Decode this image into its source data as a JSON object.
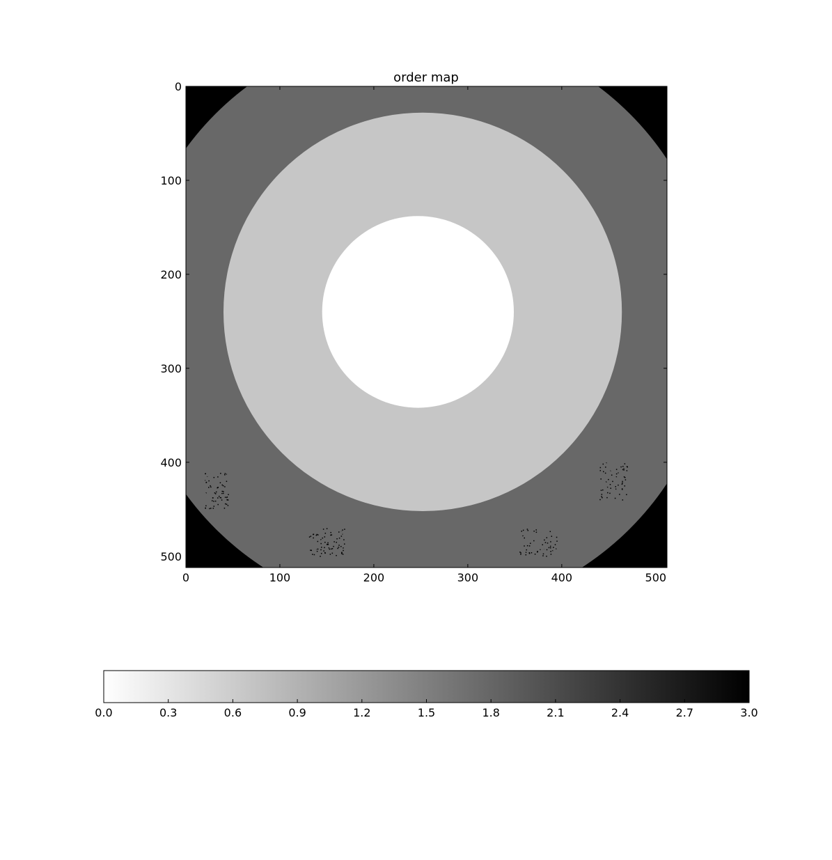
{
  "chart_data": {
    "type": "heatmap",
    "title": "order map",
    "xlabel": "",
    "ylabel": "",
    "xlim": [
      0,
      512
    ],
    "ylim": [
      512,
      0
    ],
    "x_ticks": [
      0,
      100,
      200,
      300,
      400,
      500
    ],
    "y_ticks": [
      0,
      100,
      200,
      300,
      400,
      500
    ],
    "colormap": "gray_r",
    "colorbar": {
      "orientation": "horizontal",
      "range": [
        0.0,
        3.0
      ],
      "ticks": [
        "0.0",
        "0.3",
        "0.6",
        "0.9",
        "1.2",
        "1.5",
        "1.8",
        "2.1",
        "2.4",
        "2.7",
        "3.0"
      ]
    },
    "regions": [
      {
        "order": 0,
        "shape": "disk",
        "center": [
          247,
          240
        ],
        "radius": 102
      },
      {
        "order": 1,
        "shape": "annulus",
        "center": [
          252,
          240
        ],
        "inner_radius": 102,
        "outer_radius": 212
      },
      {
        "order": 2,
        "shape": "annulus",
        "center": [
          252,
          250
        ],
        "inner_radius": 212,
        "outer_radius": 312
      },
      {
        "order": 3,
        "shape": "background",
        "note": "outside outer ring"
      }
    ],
    "level_colors": [
      "#ffffff",
      "#c6c6c6",
      "#686868",
      "#000000"
    ]
  }
}
